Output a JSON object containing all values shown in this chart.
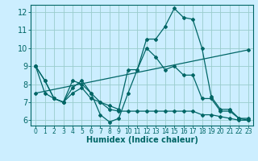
{
  "xlabel": "Humidex (Indice chaleur)",
  "background_color": "#cceeff",
  "grid_color": "#99cccc",
  "line_color": "#006666",
  "xlim": [
    -0.5,
    23.5
  ],
  "ylim": [
    5.7,
    12.4
  ],
  "yticks": [
    6,
    7,
    8,
    9,
    10,
    11,
    12
  ],
  "xticks": [
    0,
    1,
    2,
    3,
    4,
    5,
    6,
    7,
    8,
    9,
    10,
    11,
    12,
    13,
    14,
    15,
    16,
    17,
    18,
    19,
    20,
    21,
    22,
    23
  ],
  "line1_x": [
    0,
    1,
    2,
    3,
    4,
    5,
    6,
    7,
    8,
    9,
    10,
    11,
    12,
    13,
    14,
    15,
    16,
    17,
    18,
    19,
    20,
    21,
    22,
    23
  ],
  "line1_y": [
    9.0,
    8.2,
    7.2,
    7.0,
    7.8,
    8.2,
    7.5,
    6.3,
    5.9,
    6.1,
    7.5,
    8.8,
    10.5,
    10.5,
    11.2,
    12.2,
    11.7,
    11.6,
    10.0,
    7.3,
    6.6,
    6.6,
    6.1,
    6.1
  ],
  "line2_x": [
    0,
    1,
    2,
    3,
    4,
    5,
    6,
    7,
    8,
    9,
    10,
    11,
    12,
    13,
    14,
    15,
    16,
    17,
    18,
    19,
    20,
    21,
    22,
    23
  ],
  "line2_y": [
    9.0,
    8.2,
    7.2,
    7.0,
    7.5,
    7.8,
    7.2,
    7.0,
    6.8,
    6.6,
    8.8,
    8.8,
    10.0,
    9.5,
    8.8,
    9.0,
    8.5,
    8.5,
    7.2,
    7.2,
    6.5,
    6.5,
    6.1,
    6.0
  ],
  "line3_x": [
    0,
    1,
    2,
    3,
    4,
    5,
    6,
    7,
    8,
    9,
    10,
    11,
    12,
    13,
    14,
    15,
    16,
    17,
    18,
    19,
    20,
    21,
    22,
    23
  ],
  "line3_y": [
    9.0,
    7.5,
    7.2,
    7.0,
    8.2,
    8.0,
    7.5,
    7.0,
    6.6,
    6.5,
    6.5,
    6.5,
    6.5,
    6.5,
    6.5,
    6.5,
    6.5,
    6.5,
    6.3,
    6.3,
    6.2,
    6.1,
    6.0,
    6.0
  ],
  "line4_x": [
    0,
    23
  ],
  "line4_y": [
    7.5,
    9.9
  ],
  "xlabel_fontsize": 7,
  "tick_fontsize": 5.5,
  "ytick_fontsize": 7
}
